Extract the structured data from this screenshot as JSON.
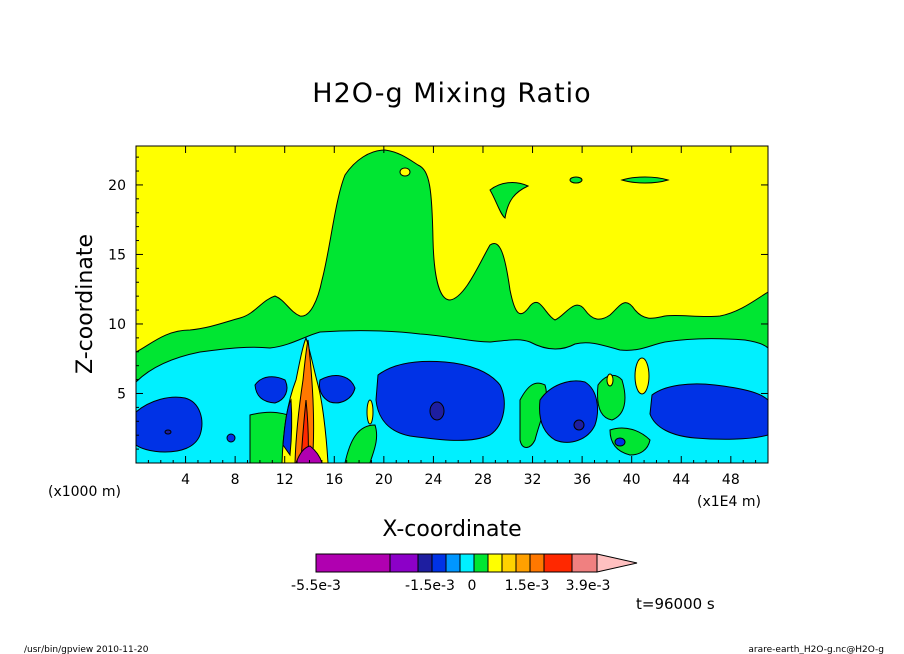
{
  "chart_data": {
    "type": "heatmap",
    "title": "H2O-g Mixing Ratio",
    "xlabel": "X-coordinate",
    "ylabel": "Z-coordinate",
    "x_unit_note": "(x1E4 m)",
    "y_unit_note": "(x1000 m)",
    "xlim": [
      0,
      51
    ],
    "ylim": [
      0,
      22.8
    ],
    "x_ticks": [
      "4",
      "8",
      "12",
      "16",
      "20",
      "24",
      "28",
      "32",
      "36",
      "40",
      "44",
      "48"
    ],
    "y_ticks": [
      "5",
      "10",
      "15",
      "20"
    ],
    "time_label": "t=96000 s",
    "colorbar": {
      "tick_labels": [
        "-5.5e-3",
        "-1.5e-3",
        "0",
        "1.5e-3",
        "3.9e-3"
      ],
      "colors": [
        "#b000b0",
        "#8c00c8",
        "#1e1ea0",
        "#0032e6",
        "#0096ff",
        "#00f0ff",
        "#00e632",
        "#ffff00",
        "#ffd200",
        "#ffa000",
        "#ff7800",
        "#ff2800",
        "#f08080",
        "#ffc0c0"
      ]
    },
    "levels_colors": {
      "background": "#ffff00",
      "green": "#00e632",
      "cyan": "#00f0ff",
      "blue": "#0032e6",
      "darkblue": "#1e1ea0",
      "orange": "#ff7800",
      "purple": "#b000b0"
    }
  },
  "footer": {
    "left": "/usr/bin/gpview  2010-11-20",
    "right": "arare-earth_H2O-g.nc@H2O-g"
  }
}
